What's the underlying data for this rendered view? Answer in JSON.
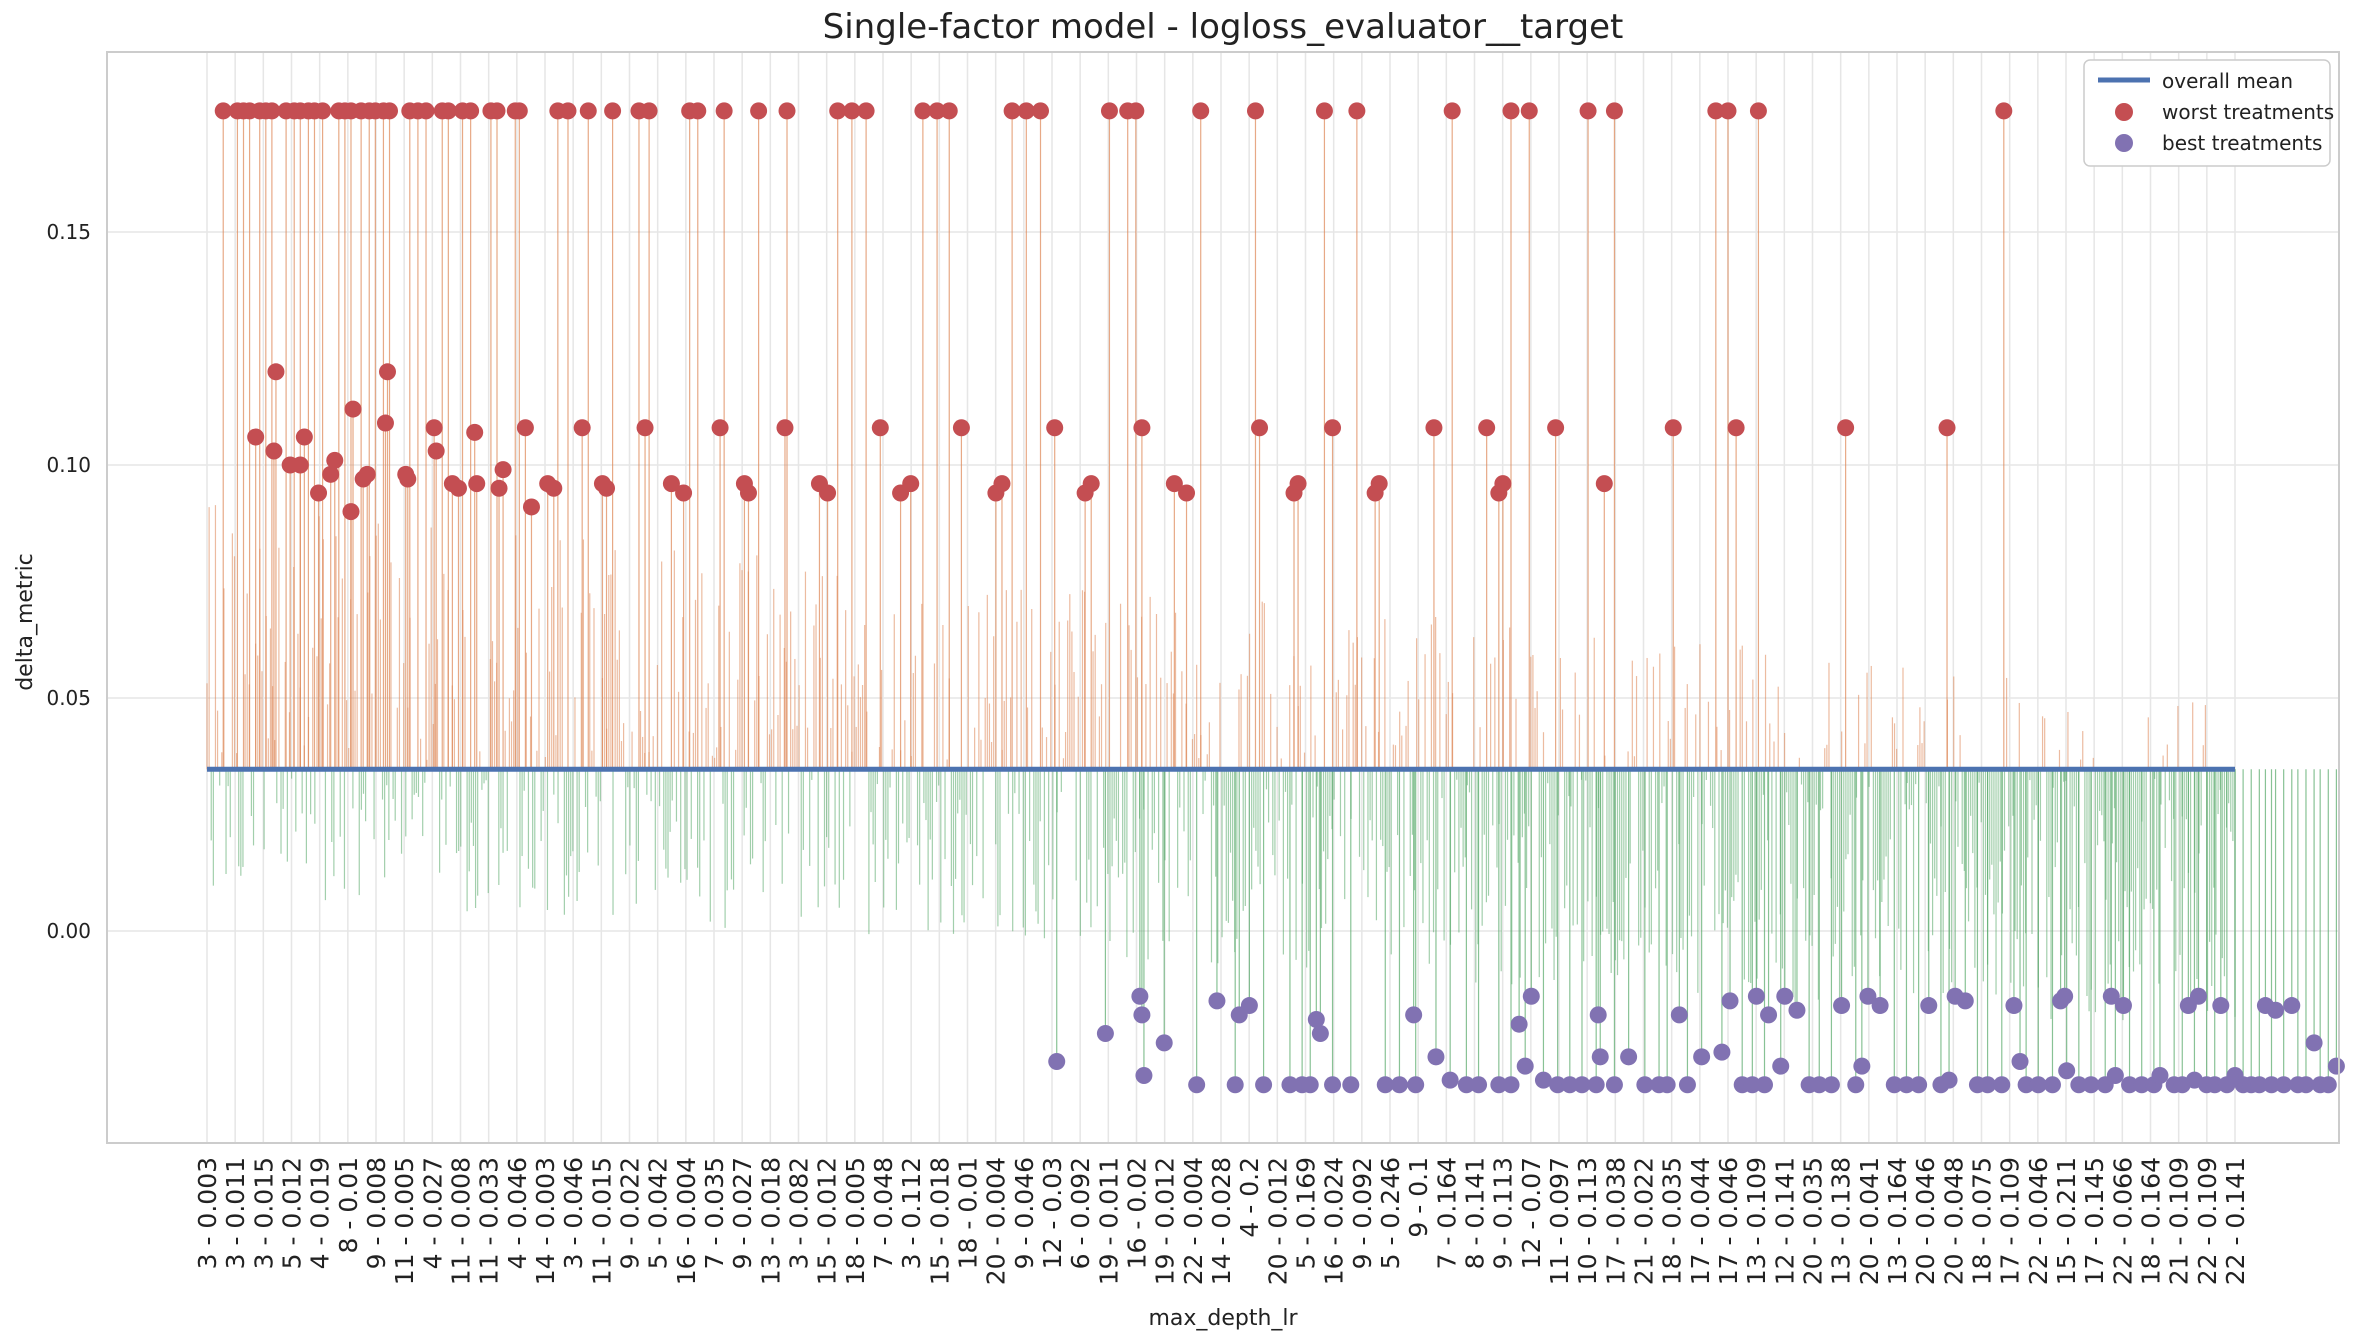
{
  "chart_data": {
    "type": "bar",
    "title": "Single-factor model - logloss_evaluator__target",
    "xlabel": "max_depth_lr",
    "ylabel": "delta_metric",
    "ylim": [
      -0.045,
      0.19
    ],
    "yticks": [
      0.0,
      0.05,
      0.1,
      0.15
    ],
    "ytick_labels": [
      "0.00",
      "0.05",
      "0.10",
      "0.15"
    ],
    "grid": true,
    "legend_position": "top-right",
    "legend": [
      {
        "label": "overall mean",
        "kind": "line",
        "color": "#4c72b0"
      },
      {
        "label": "worst treatments",
        "kind": "marker",
        "color": "#c44e52"
      },
      {
        "label": "best treatments",
        "kind": "marker",
        "color": "#8172b2"
      }
    ],
    "overall_mean": 0.0347,
    "n_treatments": 960,
    "xtick_labels": [
      "3 - 0.003",
      "3 - 0.011",
      "3 - 0.015",
      "5 - 0.012",
      "4 - 0.019",
      "8 - 0.01",
      "9 - 0.008",
      "11 - 0.005",
      "4 - 0.027",
      "11 - 0.008",
      "11 - 0.033",
      "4 - 0.046",
      "14 - 0.003",
      "3 - 0.046",
      "11 - 0.015",
      "9 - 0.022",
      "5 - 0.042",
      "16 - 0.004",
      "7 - 0.035",
      "9 - 0.027",
      "13 - 0.018",
      "3 - 0.082",
      "15 - 0.012",
      "18 - 0.005",
      "7 - 0.048",
      "3 - 0.112",
      "15 - 0.018",
      "18 - 0.01",
      "20 - 0.004",
      "9 - 0.046",
      "12 - 0.03",
      "6 - 0.092",
      "19 - 0.011",
      "16 - 0.02",
      "19 - 0.012",
      "22 - 0.004",
      "14 - 0.028",
      "4 - 0.2",
      "20 - 0.012",
      "5 - 0.169",
      "16 - 0.024",
      "9 - 0.092",
      "5 - 0.246",
      "9 - 0.1",
      "7 - 0.164",
      "8 - 0.141",
      "9 - 0.113",
      "12 - 0.07",
      "11 - 0.097",
      "10 - 0.113",
      "17 - 0.038",
      "21 - 0.022",
      "18 - 0.035",
      "17 - 0.044",
      "17 - 0.046",
      "13 - 0.109",
      "12 - 0.141",
      "20 - 0.035",
      "13 - 0.138",
      "20 - 0.041",
      "13 - 0.164",
      "20 - 0.046",
      "20 - 0.048",
      "18 - 0.075",
      "17 - 0.109",
      "22 - 0.046",
      "15 - 0.211",
      "17 - 0.145",
      "22 - 0.066",
      "18 - 0.164",
      "21 - 0.109",
      "22 - 0.109",
      "22 - 0.141"
    ],
    "worst_treatments": [
      {
        "x": 0.008,
        "value": 0.176
      },
      {
        "x": 0.015,
        "value": 0.176
      },
      {
        "x": 0.018,
        "value": 0.176
      },
      {
        "x": 0.021,
        "value": 0.176
      },
      {
        "x": 0.026,
        "value": 0.176
      },
      {
        "x": 0.029,
        "value": 0.176
      },
      {
        "x": 0.032,
        "value": 0.176
      },
      {
        "x": 0.039,
        "value": 0.176
      },
      {
        "x": 0.043,
        "value": 0.176
      },
      {
        "x": 0.046,
        "value": 0.176
      },
      {
        "x": 0.05,
        "value": 0.176
      },
      {
        "x": 0.053,
        "value": 0.176
      },
      {
        "x": 0.057,
        "value": 0.176
      },
      {
        "x": 0.065,
        "value": 0.176
      },
      {
        "x": 0.068,
        "value": 0.176
      },
      {
        "x": 0.071,
        "value": 0.176
      },
      {
        "x": 0.076,
        "value": 0.176
      },
      {
        "x": 0.08,
        "value": 0.176
      },
      {
        "x": 0.083,
        "value": 0.176
      },
      {
        "x": 0.087,
        "value": 0.176
      },
      {
        "x": 0.09,
        "value": 0.176
      },
      {
        "x": 0.1,
        "value": 0.176
      },
      {
        "x": 0.104,
        "value": 0.176
      },
      {
        "x": 0.108,
        "value": 0.176
      },
      {
        "x": 0.116,
        "value": 0.176
      },
      {
        "x": 0.119,
        "value": 0.176
      },
      {
        "x": 0.126,
        "value": 0.176
      },
      {
        "x": 0.13,
        "value": 0.176
      },
      {
        "x": 0.14,
        "value": 0.176
      },
      {
        "x": 0.143,
        "value": 0.176
      },
      {
        "x": 0.152,
        "value": 0.176
      },
      {
        "x": 0.154,
        "value": 0.176
      },
      {
        "x": 0.173,
        "value": 0.176
      },
      {
        "x": 0.178,
        "value": 0.176
      },
      {
        "x": 0.188,
        "value": 0.176
      },
      {
        "x": 0.2,
        "value": 0.176
      },
      {
        "x": 0.213,
        "value": 0.176
      },
      {
        "x": 0.218,
        "value": 0.176
      },
      {
        "x": 0.238,
        "value": 0.176
      },
      {
        "x": 0.242,
        "value": 0.176
      },
      {
        "x": 0.255,
        "value": 0.176
      },
      {
        "x": 0.272,
        "value": 0.176
      },
      {
        "x": 0.286,
        "value": 0.176
      },
      {
        "x": 0.311,
        "value": 0.176
      },
      {
        "x": 0.318,
        "value": 0.176
      },
      {
        "x": 0.325,
        "value": 0.176
      },
      {
        "x": 0.353,
        "value": 0.176
      },
      {
        "x": 0.36,
        "value": 0.176
      },
      {
        "x": 0.366,
        "value": 0.176
      },
      {
        "x": 0.397,
        "value": 0.176
      },
      {
        "x": 0.404,
        "value": 0.176
      },
      {
        "x": 0.411,
        "value": 0.176
      },
      {
        "x": 0.445,
        "value": 0.176
      },
      {
        "x": 0.454,
        "value": 0.176
      },
      {
        "x": 0.458,
        "value": 0.176
      },
      {
        "x": 0.49,
        "value": 0.176
      },
      {
        "x": 0.517,
        "value": 0.176
      },
      {
        "x": 0.551,
        "value": 0.176
      },
      {
        "x": 0.567,
        "value": 0.176
      },
      {
        "x": 0.614,
        "value": 0.176
      },
      {
        "x": 0.643,
        "value": 0.176
      },
      {
        "x": 0.652,
        "value": 0.176
      },
      {
        "x": 0.681,
        "value": 0.176
      },
      {
        "x": 0.694,
        "value": 0.176
      },
      {
        "x": 0.744,
        "value": 0.176
      },
      {
        "x": 0.75,
        "value": 0.176
      },
      {
        "x": 0.765,
        "value": 0.176
      },
      {
        "x": 0.886,
        "value": 0.176
      },
      {
        "x": 0.024,
        "value": 0.106
      },
      {
        "x": 0.034,
        "value": 0.12
      },
      {
        "x": 0.033,
        "value": 0.103
      },
      {
        "x": 0.041,
        "value": 0.1
      },
      {
        "x": 0.046,
        "value": 0.1
      },
      {
        "x": 0.048,
        "value": 0.106
      },
      {
        "x": 0.055,
        "value": 0.094
      },
      {
        "x": 0.061,
        "value": 0.098
      },
      {
        "x": 0.063,
        "value": 0.101
      },
      {
        "x": 0.071,
        "value": 0.09
      },
      {
        "x": 0.072,
        "value": 0.112
      },
      {
        "x": 0.077,
        "value": 0.097
      },
      {
        "x": 0.079,
        "value": 0.098
      },
      {
        "x": 0.088,
        "value": 0.109
      },
      {
        "x": 0.089,
        "value": 0.12
      },
      {
        "x": 0.098,
        "value": 0.098
      },
      {
        "x": 0.099,
        "value": 0.097
      },
      {
        "x": 0.112,
        "value": 0.108
      },
      {
        "x": 0.113,
        "value": 0.103
      },
      {
        "x": 0.121,
        "value": 0.096
      },
      {
        "x": 0.124,
        "value": 0.095
      },
      {
        "x": 0.132,
        "value": 0.107
      },
      {
        "x": 0.133,
        "value": 0.096
      },
      {
        "x": 0.144,
        "value": 0.095
      },
      {
        "x": 0.146,
        "value": 0.099
      },
      {
        "x": 0.157,
        "value": 0.108
      },
      {
        "x": 0.16,
        "value": 0.091
      },
      {
        "x": 0.168,
        "value": 0.096
      },
      {
        "x": 0.171,
        "value": 0.095
      },
      {
        "x": 0.185,
        "value": 0.108
      },
      {
        "x": 0.195,
        "value": 0.096
      },
      {
        "x": 0.197,
        "value": 0.095
      },
      {
        "x": 0.216,
        "value": 0.108
      },
      {
        "x": 0.229,
        "value": 0.096
      },
      {
        "x": 0.235,
        "value": 0.094
      },
      {
        "x": 0.253,
        "value": 0.108
      },
      {
        "x": 0.265,
        "value": 0.096
      },
      {
        "x": 0.267,
        "value": 0.094
      },
      {
        "x": 0.285,
        "value": 0.108
      },
      {
        "x": 0.302,
        "value": 0.096
      },
      {
        "x": 0.306,
        "value": 0.094
      },
      {
        "x": 0.332,
        "value": 0.108
      },
      {
        "x": 0.342,
        "value": 0.094
      },
      {
        "x": 0.347,
        "value": 0.096
      },
      {
        "x": 0.372,
        "value": 0.108
      },
      {
        "x": 0.389,
        "value": 0.094
      },
      {
        "x": 0.392,
        "value": 0.096
      },
      {
        "x": 0.418,
        "value": 0.108
      },
      {
        "x": 0.433,
        "value": 0.094
      },
      {
        "x": 0.436,
        "value": 0.096
      },
      {
        "x": 0.461,
        "value": 0.108
      },
      {
        "x": 0.477,
        "value": 0.096
      },
      {
        "x": 0.483,
        "value": 0.094
      },
      {
        "x": 0.519,
        "value": 0.108
      },
      {
        "x": 0.536,
        "value": 0.094
      },
      {
        "x": 0.538,
        "value": 0.096
      },
      {
        "x": 0.555,
        "value": 0.108
      },
      {
        "x": 0.576,
        "value": 0.094
      },
      {
        "x": 0.578,
        "value": 0.096
      },
      {
        "x": 0.605,
        "value": 0.108
      },
      {
        "x": 0.637,
        "value": 0.094
      },
      {
        "x": 0.639,
        "value": 0.096
      },
      {
        "x": 0.665,
        "value": 0.108
      },
      {
        "x": 0.689,
        "value": 0.096
      },
      {
        "x": 0.723,
        "value": 0.108
      },
      {
        "x": 0.754,
        "value": 0.108
      },
      {
        "x": 0.808,
        "value": 0.108
      },
      {
        "x": 0.858,
        "value": 0.108
      },
      {
        "x": 0.631,
        "value": 0.108
      }
    ],
    "best_treatments": [
      {
        "x": 0.419,
        "value": -0.028
      },
      {
        "x": 0.443,
        "value": -0.022
      },
      {
        "x": 0.46,
        "value": -0.014
      },
      {
        "x": 0.461,
        "value": -0.018
      },
      {
        "x": 0.462,
        "value": -0.031
      },
      {
        "x": 0.472,
        "value": -0.024
      },
      {
        "x": 0.488,
        "value": -0.033
      },
      {
        "x": 0.498,
        "value": -0.015
      },
      {
        "x": 0.507,
        "value": -0.033
      },
      {
        "x": 0.509,
        "value": -0.018
      },
      {
        "x": 0.514,
        "value": -0.016
      },
      {
        "x": 0.521,
        "value": -0.033
      },
      {
        "x": 0.534,
        "value": -0.033
      },
      {
        "x": 0.54,
        "value": -0.033
      },
      {
        "x": 0.544,
        "value": -0.033
      },
      {
        "x": 0.547,
        "value": -0.019
      },
      {
        "x": 0.549,
        "value": -0.022
      },
      {
        "x": 0.555,
        "value": -0.033
      },
      {
        "x": 0.564,
        "value": -0.033
      },
      {
        "x": 0.581,
        "value": -0.033
      },
      {
        "x": 0.588,
        "value": -0.033
      },
      {
        "x": 0.595,
        "value": -0.018
      },
      {
        "x": 0.596,
        "value": -0.033
      },
      {
        "x": 0.606,
        "value": -0.027
      },
      {
        "x": 0.613,
        "value": -0.032
      },
      {
        "x": 0.621,
        "value": -0.033
      },
      {
        "x": 0.627,
        "value": -0.033
      },
      {
        "x": 0.637,
        "value": -0.033
      },
      {
        "x": 0.643,
        "value": -0.033
      },
      {
        "x": 0.647,
        "value": -0.02
      },
      {
        "x": 0.65,
        "value": -0.029
      },
      {
        "x": 0.653,
        "value": -0.014
      },
      {
        "x": 0.659,
        "value": -0.032
      },
      {
        "x": 0.666,
        "value": -0.033
      },
      {
        "x": 0.672,
        "value": -0.033
      },
      {
        "x": 0.678,
        "value": -0.033
      },
      {
        "x": 0.685,
        "value": -0.033
      },
      {
        "x": 0.686,
        "value": -0.018
      },
      {
        "x": 0.687,
        "value": -0.027
      },
      {
        "x": 0.694,
        "value": -0.033
      },
      {
        "x": 0.701,
        "value": -0.027
      },
      {
        "x": 0.709,
        "value": -0.033
      },
      {
        "x": 0.716,
        "value": -0.033
      },
      {
        "x": 0.72,
        "value": -0.033
      },
      {
        "x": 0.726,
        "value": -0.018
      },
      {
        "x": 0.73,
        "value": -0.033
      },
      {
        "x": 0.737,
        "value": -0.027
      },
      {
        "x": 0.747,
        "value": -0.026
      },
      {
        "x": 0.751,
        "value": -0.015
      },
      {
        "x": 0.757,
        "value": -0.033
      },
      {
        "x": 0.762,
        "value": -0.033
      },
      {
        "x": 0.764,
        "value": -0.014
      },
      {
        "x": 0.768,
        "value": -0.033
      },
      {
        "x": 0.77,
        "value": -0.018
      },
      {
        "x": 0.776,
        "value": -0.029
      },
      {
        "x": 0.778,
        "value": -0.014
      },
      {
        "x": 0.784,
        "value": -0.017
      },
      {
        "x": 0.79,
        "value": -0.033
      },
      {
        "x": 0.795,
        "value": -0.033
      },
      {
        "x": 0.801,
        "value": -0.033
      },
      {
        "x": 0.806,
        "value": -0.016
      },
      {
        "x": 0.813,
        "value": -0.033
      },
      {
        "x": 0.816,
        "value": -0.029
      },
      {
        "x": 0.819,
        "value": -0.014
      },
      {
        "x": 0.825,
        "value": -0.016
      },
      {
        "x": 0.832,
        "value": -0.033
      },
      {
        "x": 0.838,
        "value": -0.033
      },
      {
        "x": 0.844,
        "value": -0.033
      },
      {
        "x": 0.849,
        "value": -0.016
      },
      {
        "x": 0.855,
        "value": -0.033
      },
      {
        "x": 0.859,
        "value": -0.032
      },
      {
        "x": 0.862,
        "value": -0.014
      },
      {
        "x": 0.867,
        "value": -0.015
      },
      {
        "x": 0.873,
        "value": -0.033
      },
      {
        "x": 0.878,
        "value": -0.033
      },
      {
        "x": 0.885,
        "value": -0.033
      },
      {
        "x": 0.891,
        "value": -0.016
      },
      {
        "x": 0.894,
        "value": -0.028
      },
      {
        "x": 0.897,
        "value": -0.033
      },
      {
        "x": 0.903,
        "value": -0.033
      },
      {
        "x": 0.91,
        "value": -0.033
      },
      {
        "x": 0.914,
        "value": -0.015
      },
      {
        "x": 0.916,
        "value": -0.014
      },
      {
        "x": 0.917,
        "value": -0.03
      },
      {
        "x": 0.923,
        "value": -0.033
      },
      {
        "x": 0.929,
        "value": -0.033
      },
      {
        "x": 0.936,
        "value": -0.033
      },
      {
        "x": 0.939,
        "value": -0.014
      },
      {
        "x": 0.941,
        "value": -0.031
      },
      {
        "x": 0.945,
        "value": -0.016
      },
      {
        "x": 0.948,
        "value": -0.033
      },
      {
        "x": 0.954,
        "value": -0.033
      },
      {
        "x": 0.96,
        "value": -0.033
      },
      {
        "x": 0.963,
        "value": -0.031
      },
      {
        "x": 0.97,
        "value": -0.033
      },
      {
        "x": 0.974,
        "value": -0.033
      },
      {
        "x": 0.977,
        "value": -0.016
      },
      {
        "x": 0.98,
        "value": -0.032
      },
      {
        "x": 0.982,
        "value": -0.014
      },
      {
        "x": 0.986,
        "value": -0.033
      },
      {
        "x": 0.99,
        "value": -0.033
      },
      {
        "x": 0.993,
        "value": -0.016
      },
      {
        "x": 0.996,
        "value": -0.033
      },
      {
        "x": 1.0,
        "value": -0.031
      },
      {
        "x": 1.004,
        "value": -0.033
      },
      {
        "x": 1.008,
        "value": -0.033
      },
      {
        "x": 1.012,
        "value": -0.033
      },
      {
        "x": 1.015,
        "value": -0.016
      },
      {
        "x": 1.018,
        "value": -0.033
      },
      {
        "x": 1.02,
        "value": -0.017
      },
      {
        "x": 1.024,
        "value": -0.033
      },
      {
        "x": 1.028,
        "value": -0.016
      },
      {
        "x": 1.031,
        "value": -0.033
      },
      {
        "x": 1.035,
        "value": -0.033
      },
      {
        "x": 1.039,
        "value": -0.024
      },
      {
        "x": 1.042,
        "value": -0.033
      },
      {
        "x": 1.046,
        "value": -0.033
      },
      {
        "x": 1.05,
        "value": -0.029
      }
    ]
  }
}
